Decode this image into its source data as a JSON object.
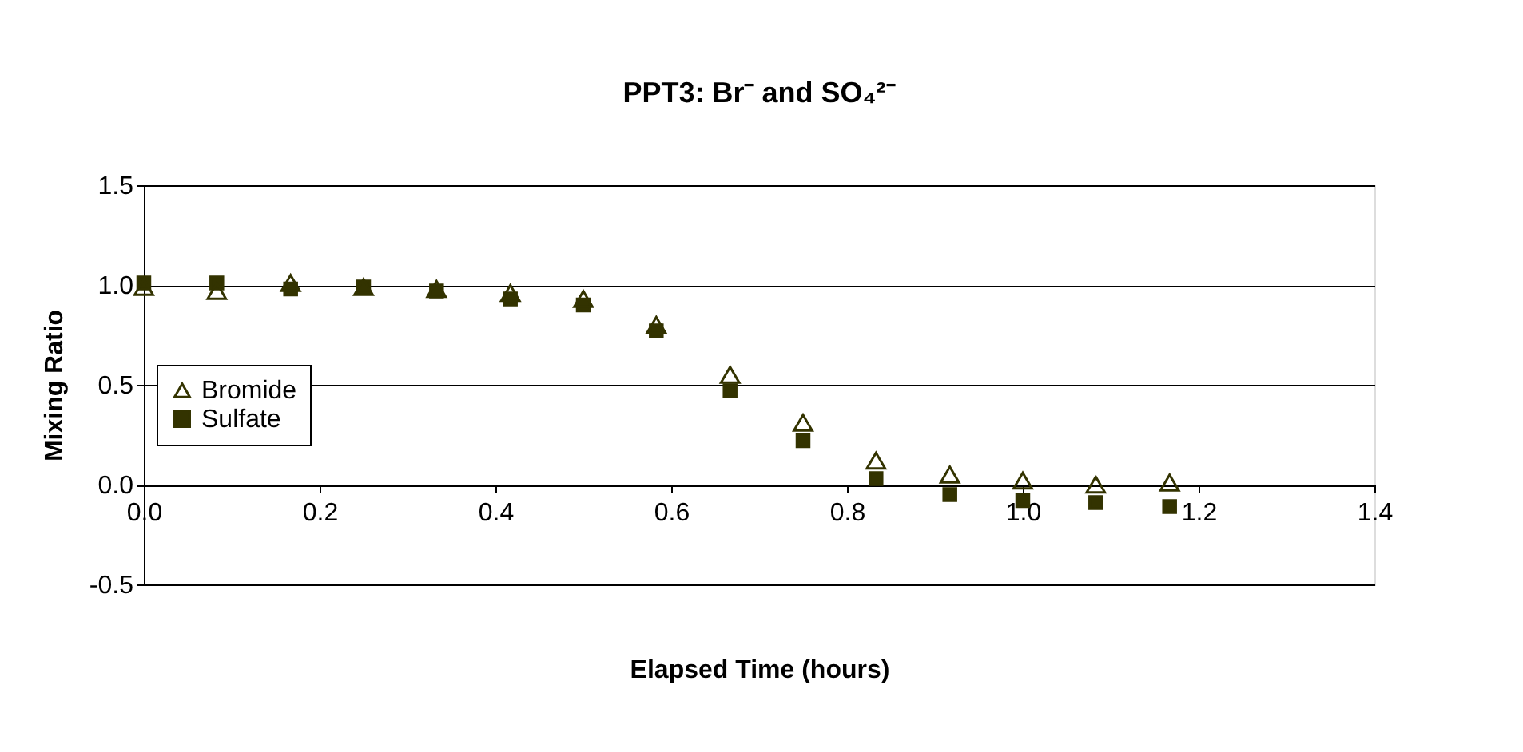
{
  "chart_data": {
    "type": "scatter",
    "title": "PPT3: Br⁻ and SO₄²⁻",
    "xlabel": "Elapsed Time (hours)",
    "ylabel": "Mixing Ratio",
    "x": [
      0,
      0.083,
      0.167,
      0.25,
      0.333,
      0.417,
      0.5,
      0.583,
      0.667,
      0.75,
      0.833,
      0.917,
      1.0,
      1.083,
      1.167
    ],
    "series": [
      {
        "name": "Bromide",
        "color": "#333300",
        "marker": "triangle",
        "values": [
          0.99,
          0.97,
          1.01,
          0.99,
          0.98,
          0.96,
          0.93,
          0.8,
          0.55,
          0.31,
          0.12,
          0.05,
          0.02,
          0.0,
          0.01
        ]
      },
      {
        "name": "Sulfate",
        "color": "#333300",
        "marker": "square",
        "values": [
          1.01,
          1.01,
          0.98,
          0.99,
          0.97,
          0.93,
          0.9,
          0.77,
          0.47,
          0.22,
          0.03,
          -0.05,
          -0.08,
          -0.09,
          -0.11
        ]
      }
    ],
    "xlim": [
      0,
      1.4
    ],
    "xticks": [
      {
        "value": 0,
        "label": "0.0"
      },
      0.2,
      0.4,
      0.6,
      0.8,
      {
        "value": 1,
        "label": "1.0"
      },
      1.2,
      1.4
    ],
    "ylim": [
      -0.5,
      1.5
    ],
    "yticks": [
      -0.5,
      {
        "value": 0,
        "label": "0.0"
      },
      0.5,
      {
        "value": 1,
        "label": "1.0"
      },
      1.5
    ],
    "grid": "y",
    "legend": "left"
  }
}
